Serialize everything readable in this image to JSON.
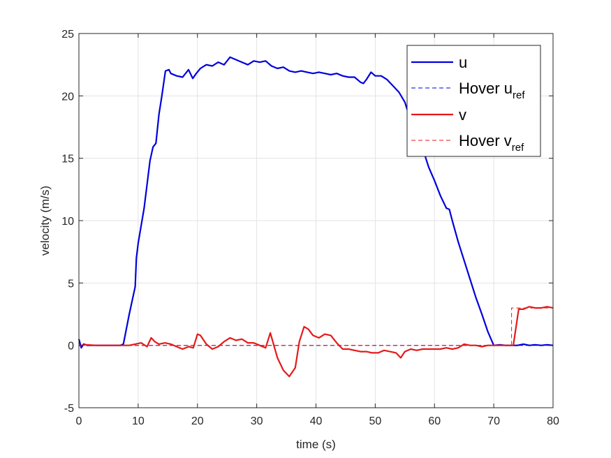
{
  "chart_data": {
    "type": "line",
    "xlabel": "time (s)",
    "ylabel": "velocity (m/s)",
    "xlim": [
      0,
      80
    ],
    "ylim": [
      -5,
      25
    ],
    "xticks": [
      "0",
      "10",
      "20",
      "30",
      "40",
      "50",
      "60",
      "70",
      "80"
    ],
    "yticks": [
      "-5",
      "0",
      "5",
      "10",
      "15",
      "20",
      "25"
    ],
    "grid": true,
    "legend_position": "top-right",
    "series": [
      {
        "name": "u",
        "legend_main": "u",
        "legend_sub": "",
        "color": "#0000dd",
        "style": "solid",
        "points": [
          [
            0,
            0.5
          ],
          [
            0.4,
            -0.2
          ],
          [
            0.8,
            0.1
          ],
          [
            1.5,
            0
          ],
          [
            3,
            0
          ],
          [
            5,
            0
          ],
          [
            7,
            0
          ],
          [
            7.5,
            0.1
          ],
          [
            8.5,
            2.5
          ],
          [
            9.5,
            4.7
          ],
          [
            9.7,
            7
          ],
          [
            10,
            8.2
          ],
          [
            11,
            11
          ],
          [
            12,
            14.8
          ],
          [
            12.5,
            15.9
          ],
          [
            13,
            16.2
          ],
          [
            13.5,
            18.5
          ],
          [
            14,
            20
          ],
          [
            14.6,
            22
          ],
          [
            15.2,
            22.1
          ],
          [
            15.5,
            21.8
          ],
          [
            16.5,
            21.6
          ],
          [
            17.5,
            21.5
          ],
          [
            18.5,
            22.1
          ],
          [
            19.2,
            21.4
          ],
          [
            19.8,
            21.8
          ],
          [
            20.5,
            22.2
          ],
          [
            21.5,
            22.5
          ],
          [
            22.5,
            22.4
          ],
          [
            23.5,
            22.7
          ],
          [
            24.5,
            22.5
          ],
          [
            25.5,
            23.1
          ],
          [
            26.5,
            22.9
          ],
          [
            27.5,
            22.7
          ],
          [
            28.5,
            22.5
          ],
          [
            29.5,
            22.8
          ],
          [
            30.5,
            22.7
          ],
          [
            31.5,
            22.8
          ],
          [
            32.5,
            22.4
          ],
          [
            33.5,
            22.2
          ],
          [
            34.5,
            22.3
          ],
          [
            35.5,
            22
          ],
          [
            36.5,
            21.9
          ],
          [
            37.5,
            22
          ],
          [
            38.5,
            21.9
          ],
          [
            39.5,
            21.8
          ],
          [
            40.5,
            21.9
          ],
          [
            41.5,
            21.8
          ],
          [
            42.5,
            21.7
          ],
          [
            43.5,
            21.8
          ],
          [
            44.5,
            21.6
          ],
          [
            45.5,
            21.5
          ],
          [
            46.5,
            21.5
          ],
          [
            47.5,
            21.1
          ],
          [
            48,
            21.0
          ],
          [
            48.5,
            21.3
          ],
          [
            49.3,
            21.9
          ],
          [
            50,
            21.6
          ],
          [
            51,
            21.6
          ],
          [
            52,
            21.3
          ],
          [
            53,
            20.8
          ],
          [
            54,
            20.3
          ],
          [
            55,
            19.5
          ],
          [
            56,
            18
          ],
          [
            57,
            16.5
          ],
          [
            58,
            15.8
          ],
          [
            59,
            14.3
          ],
          [
            60,
            13.2
          ],
          [
            61,
            12
          ],
          [
            62,
            11
          ],
          [
            62.5,
            10.9
          ],
          [
            63,
            10
          ],
          [
            64,
            8.3
          ],
          [
            65,
            6.8
          ],
          [
            66,
            5.3
          ],
          [
            67,
            3.8
          ],
          [
            68,
            2.5
          ],
          [
            69,
            1.1
          ],
          [
            70,
            0
          ],
          [
            71,
            0.05
          ],
          [
            72,
            0
          ],
          [
            73,
            0
          ],
          [
            74,
            0
          ],
          [
            75,
            0.1
          ],
          [
            76,
            0
          ],
          [
            77,
            0.05
          ],
          [
            78,
            0
          ],
          [
            79,
            0.05
          ],
          [
            80,
            0
          ]
        ]
      },
      {
        "name": "Hover u_ref",
        "legend_main": "Hover u",
        "legend_sub": "ref",
        "color": "#0000dd",
        "style": "dashed",
        "points": [
          [
            0,
            0
          ],
          [
            80,
            0
          ]
        ]
      },
      {
        "name": "v",
        "legend_main": "v",
        "legend_sub": "",
        "color": "#e41a1a",
        "style": "solid",
        "points": [
          [
            0,
            0
          ],
          [
            0.5,
            0
          ],
          [
            1,
            0.05
          ],
          [
            3,
            0
          ],
          [
            5,
            0
          ],
          [
            7,
            0
          ],
          [
            8.5,
            0
          ],
          [
            9.5,
            0.1
          ],
          [
            10.5,
            0.2
          ],
          [
            11.5,
            -0.1
          ],
          [
            12.2,
            0.6
          ],
          [
            12.8,
            0.3
          ],
          [
            13.5,
            0.1
          ],
          [
            14.5,
            0.2
          ],
          [
            15.5,
            0.1
          ],
          [
            16.5,
            -0.1
          ],
          [
            17.5,
            -0.3
          ],
          [
            18.5,
            -0.1
          ],
          [
            19.3,
            -0.2
          ],
          [
            20,
            0.9
          ],
          [
            20.5,
            0.8
          ],
          [
            21.5,
            0.1
          ],
          [
            22.5,
            -0.3
          ],
          [
            23.5,
            -0.1
          ],
          [
            24.5,
            0.3
          ],
          [
            25.5,
            0.6
          ],
          [
            26.5,
            0.4
          ],
          [
            27.5,
            0.5
          ],
          [
            28.5,
            0.2
          ],
          [
            29.5,
            0.2
          ],
          [
            30.5,
            0
          ],
          [
            31.5,
            -0.2
          ],
          [
            32.3,
            1
          ],
          [
            33.5,
            -1
          ],
          [
            34.5,
            -2
          ],
          [
            35.5,
            -2.5
          ],
          [
            36.5,
            -1.8
          ],
          [
            37.2,
            0.3
          ],
          [
            38,
            1.5
          ],
          [
            38.7,
            1.3
          ],
          [
            39.5,
            0.8
          ],
          [
            40.5,
            0.6
          ],
          [
            41.5,
            0.9
          ],
          [
            42.5,
            0.8
          ],
          [
            43.5,
            0.2
          ],
          [
            44.5,
            -0.3
          ],
          [
            45.5,
            -0.3
          ],
          [
            46.5,
            -0.4
          ],
          [
            47.5,
            -0.5
          ],
          [
            48.5,
            -0.5
          ],
          [
            49.5,
            -0.6
          ],
          [
            50.5,
            -0.6
          ],
          [
            51.5,
            -0.4
          ],
          [
            52.5,
            -0.5
          ],
          [
            53.5,
            -0.6
          ],
          [
            54.3,
            -1.0
          ],
          [
            55,
            -0.5
          ],
          [
            56,
            -0.3
          ],
          [
            57,
            -0.4
          ],
          [
            58,
            -0.3
          ],
          [
            59,
            -0.3
          ],
          [
            60,
            -0.3
          ],
          [
            61,
            -0.3
          ],
          [
            62,
            -0.2
          ],
          [
            63,
            -0.3
          ],
          [
            64,
            -0.2
          ],
          [
            65,
            0.1
          ],
          [
            66,
            0
          ],
          [
            67,
            0
          ],
          [
            68,
            -0.1
          ],
          [
            69,
            0
          ],
          [
            70,
            0
          ],
          [
            71,
            0
          ],
          [
            72,
            0
          ],
          [
            73,
            0
          ],
          [
            73.3,
            0
          ],
          [
            74.2,
            2.9
          ],
          [
            75,
            2.9
          ],
          [
            76,
            3.1
          ],
          [
            77,
            3
          ],
          [
            78,
            3
          ],
          [
            79,
            3.1
          ],
          [
            80,
            3
          ]
        ]
      },
      {
        "name": "Hover v_ref",
        "legend_main": "Hover v",
        "legend_sub": "ref",
        "color": "#e41a1a",
        "style": "dashed",
        "points": [
          [
            0,
            0
          ],
          [
            73,
            0
          ],
          [
            73,
            3
          ],
          [
            80,
            3
          ]
        ]
      }
    ]
  }
}
